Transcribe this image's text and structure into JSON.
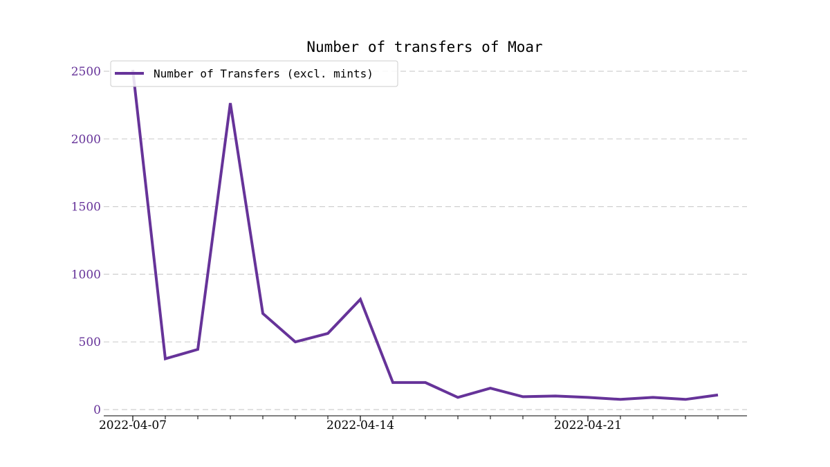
{
  "chart_data": {
    "type": "line",
    "title": "Number of transfers of Moar",
    "xlabel": "",
    "ylabel": "",
    "x": [
      "2022-04-07",
      "2022-04-08",
      "2022-04-09",
      "2022-04-10",
      "2022-04-11",
      "2022-04-12",
      "2022-04-13",
      "2022-04-14",
      "2022-04-15",
      "2022-04-16",
      "2022-04-17",
      "2022-04-18",
      "2022-04-19",
      "2022-04-20",
      "2022-04-21",
      "2022-04-22",
      "2022-04-23",
      "2022-04-24",
      "2022-04-25"
    ],
    "series": [
      {
        "name": "Number of Transfers (excl. mints)",
        "values": [
          2510,
          375,
          445,
          2265,
          710,
          500,
          563,
          815,
          200,
          200,
          90,
          158,
          95,
          100,
          90,
          75,
          90,
          75,
          108
        ]
      }
    ],
    "x_ticks": [
      "2022-04-07",
      "2022-04-14",
      "2022-04-21"
    ],
    "y_ticks": [
      "0",
      "500",
      "1000",
      "1500",
      "2000",
      "2500"
    ],
    "xlim": [
      "2022-04-07",
      "2022-04-25"
    ],
    "ylim": [
      0,
      2500
    ],
    "grid": "y-dashed",
    "legend": "top-left",
    "colors": {
      "line": "#663399",
      "ytick": "#663399",
      "grid": "#cfcfcf"
    }
  }
}
